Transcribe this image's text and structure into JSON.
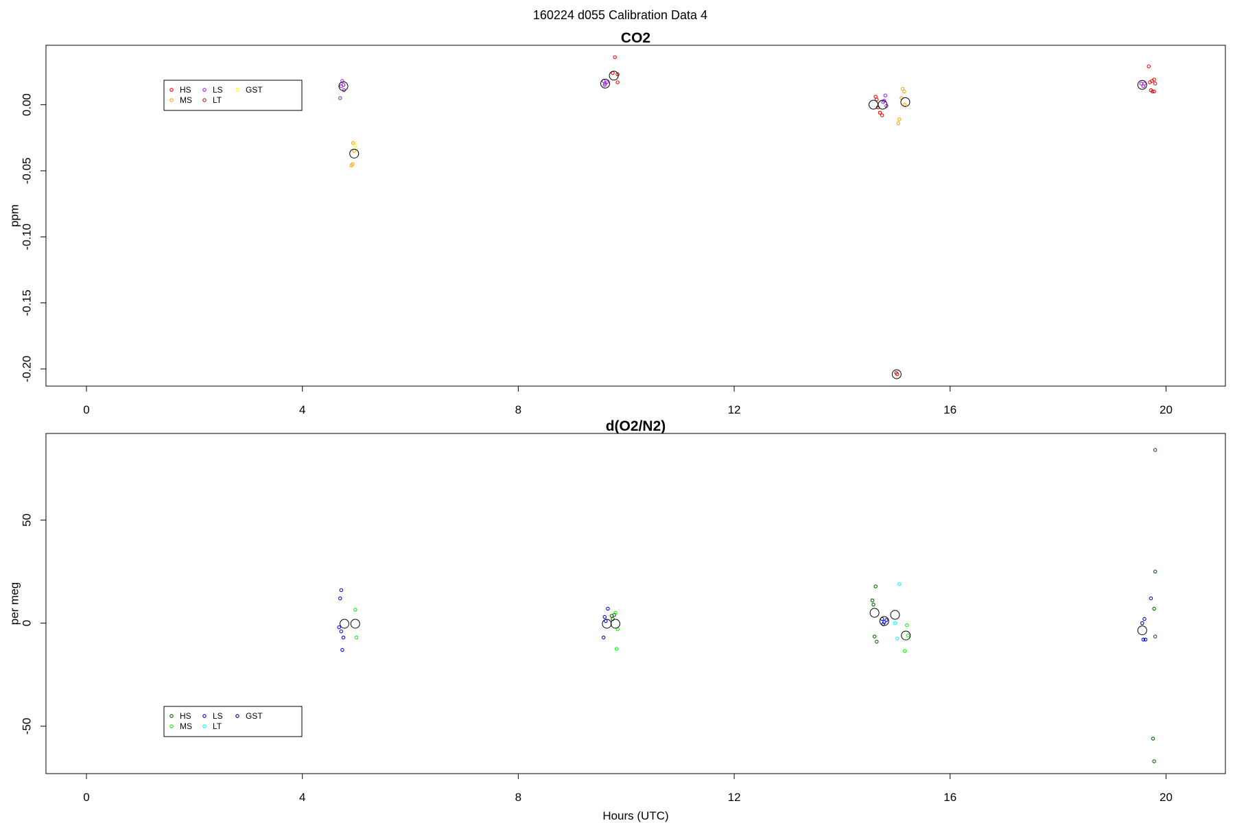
{
  "figure_title": "160224   d055   Calibration Data 4",
  "chart_data": [
    {
      "type": "scatter",
      "title": "CO2",
      "xlabel": "",
      "ylabel": "ppm",
      "xlim": [
        -0.75,
        21.1
      ],
      "ylim": [
        -0.213,
        0.045
      ],
      "x_ticks": [
        0,
        4,
        8,
        12,
        16,
        20
      ],
      "x_tick_labels": [
        "0",
        "4",
        "8",
        "12",
        "16",
        "20"
      ],
      "y_ticks": [
        0.0,
        -0.05,
        -0.1,
        -0.15,
        -0.2
      ],
      "y_tick_labels": [
        "0.00",
        "-0.05",
        "-0.10",
        "-0.15",
        "-0.20"
      ],
      "grid": false,
      "legend": {
        "position": "top-left",
        "entries": [
          {
            "label": "HS",
            "color": "#ff0000"
          },
          {
            "label": "MS",
            "color": "#ffa500"
          },
          {
            "label": "LS",
            "color": "#a020f0"
          },
          {
            "label": "LT",
            "color": "#b22222"
          },
          {
            "label": "GST",
            "color": "#ffff00"
          }
        ]
      },
      "series": [
        {
          "name": "HS",
          "color": "#ff0000",
          "marker": "small-circle",
          "points": [
            [
              9.79,
              0.036
            ],
            [
              9.75,
              0.024
            ],
            [
              9.84,
              0.017
            ],
            [
              9.84,
              0.023
            ],
            [
              14.62,
              0.006
            ],
            [
              14.64,
              0.004
            ],
            [
              14.66,
              -0.002
            ],
            [
              14.7,
              -0.006
            ],
            [
              14.74,
              -0.008
            ],
            [
              15.02,
              -0.204
            ],
            [
              19.68,
              0.029
            ],
            [
              19.7,
              0.017
            ],
            [
              19.74,
              0.018
            ],
            [
              19.78,
              0.019
            ],
            [
              19.72,
              0.011
            ],
            [
              19.75,
              0.01
            ]
          ]
        },
        {
          "name": "MS",
          "color": "#ffa500",
          "marker": "small-circle",
          "points": [
            [
              4.94,
              -0.029
            ],
            [
              4.93,
              -0.045
            ],
            [
              4.91,
              -0.046
            ],
            [
              4.96,
              -0.035
            ],
            [
              15.12,
              0.012
            ],
            [
              15.15,
              0.01
            ],
            [
              15.16,
              0.0
            ],
            [
              15.06,
              -0.011
            ],
            [
              15.04,
              -0.014
            ],
            [
              15.1,
              0.005
            ]
          ]
        },
        {
          "name": "LS",
          "color": "#a020f0",
          "marker": "small-circle",
          "points": [
            [
              4.7,
              0.005
            ],
            [
              4.74,
              0.018
            ],
            [
              4.76,
              0.015
            ],
            [
              4.72,
              0.014
            ],
            [
              4.77,
              0.011
            ],
            [
              9.58,
              0.018
            ],
            [
              9.6,
              0.015
            ],
            [
              9.64,
              0.017
            ],
            [
              9.61,
              0.016
            ],
            [
              14.8,
              0.007
            ],
            [
              14.78,
              0.003
            ],
            [
              14.82,
              -0.001
            ],
            [
              14.76,
              0.002
            ],
            [
              19.54,
              0.016
            ],
            [
              19.58,
              0.014
            ],
            [
              19.6,
              0.016
            ]
          ]
        },
        {
          "name": "LT",
          "color": "#b22222",
          "marker": "small-circle",
          "points": [
            [
              15.0,
              -0.203
            ],
            [
              19.8,
              0.016
            ],
            [
              19.78,
              0.01
            ]
          ]
        },
        {
          "name": "GST",
          "color": "#ffff00",
          "marker": "small-circle",
          "points": [
            [
              4.98,
              -0.031
            ]
          ]
        },
        {
          "name": "",
          "color": "#000000",
          "marker": "large-circle",
          "points": [
            [
              4.76,
              0.014
            ],
            [
              4.96,
              -0.037
            ],
            [
              9.61,
              0.016
            ],
            [
              9.77,
              0.022
            ],
            [
              14.58,
              0.0
            ],
            [
              14.75,
              0.0
            ],
            [
              15.01,
              -0.204
            ],
            [
              15.17,
              0.002
            ],
            [
              19.56,
              0.015
            ]
          ]
        }
      ]
    },
    {
      "type": "scatter",
      "title": "d(O2/N2)",
      "xlabel": "Hours (UTC)",
      "ylabel": "per meg",
      "xlim": [
        -0.75,
        21.1
      ],
      "ylim": [
        -73,
        92
      ],
      "x_ticks": [
        0,
        4,
        8,
        12,
        16,
        20
      ],
      "x_tick_labels": [
        "0",
        "4",
        "8",
        "12",
        "16",
        "20"
      ],
      "y_ticks": [
        50,
        0,
        -50
      ],
      "y_tick_labels": [
        "50",
        "0",
        "-50"
      ],
      "grid": false,
      "legend": {
        "position": "bottom-left",
        "entries": [
          {
            "label": "HS",
            "color": "#006400"
          },
          {
            "label": "MS",
            "color": "#00ff00"
          },
          {
            "label": "LS",
            "color": "#0000ff"
          },
          {
            "label": "LT",
            "color": "#00ffff"
          },
          {
            "label": "GST",
            "color": "#000080"
          }
        ]
      },
      "series": [
        {
          "name": "HS",
          "color": "#006400",
          "marker": "small-circle",
          "points": [
            [
              9.73,
              3.5
            ],
            [
              9.75,
              2.0
            ],
            [
              9.78,
              4.0
            ],
            [
              14.62,
              17.8
            ],
            [
              14.56,
              11.0
            ],
            [
              14.58,
              9.0
            ],
            [
              14.6,
              -6.5
            ],
            [
              14.64,
              -9.0
            ],
            [
              19.8,
              84.0
            ],
            [
              19.8,
              25.0
            ],
            [
              19.78,
              7.0
            ],
            [
              19.8,
              -6.5
            ],
            [
              19.76,
              -56.0
            ],
            [
              19.78,
              -67.0
            ]
          ]
        },
        {
          "name": "MS",
          "color": "#00ff00",
          "marker": "small-circle",
          "points": [
            [
              4.98,
              6.5
            ],
            [
              5.0,
              -7.0
            ],
            [
              9.8,
              5.0
            ],
            [
              9.84,
              -3.0
            ],
            [
              9.82,
              -12.5
            ],
            [
              15.2,
              -1.0
            ],
            [
              15.22,
              -6.0
            ],
            [
              15.16,
              -13.5
            ]
          ]
        },
        {
          "name": "LS",
          "color": "#0000ff",
          "marker": "small-circle",
          "points": [
            [
              4.72,
              16.0
            ],
            [
              4.7,
              12.0
            ],
            [
              4.68,
              -2.0
            ],
            [
              4.72,
              -4.0
            ],
            [
              4.76,
              -7.0
            ],
            [
              4.74,
              -13.0
            ],
            [
              9.66,
              7.0
            ],
            [
              9.6,
              3.0
            ],
            [
              9.62,
              1.0
            ],
            [
              9.58,
              -7.0
            ],
            [
              14.74,
              2.0
            ],
            [
              14.78,
              0.5
            ],
            [
              14.76,
              -0.5
            ],
            [
              14.82,
              1.5
            ],
            [
              19.6,
              2.0
            ],
            [
              19.58,
              -8.0
            ],
            [
              19.62,
              -8.0
            ],
            [
              19.72,
              12.0
            ]
          ]
        },
        {
          "name": "LT",
          "color": "#00ffff",
          "marker": "small-circle",
          "points": [
            [
              15.06,
              19.0
            ],
            [
              14.98,
              0.0
            ],
            [
              15.02,
              -7.5
            ]
          ]
        },
        {
          "name": "GST",
          "color": "#000080",
          "marker": "small-circle",
          "points": [
            [
              19.56,
              0.0
            ]
          ]
        },
        {
          "name": "",
          "color": "#000000",
          "marker": "large-circle",
          "points": [
            [
              4.78,
              -0.3
            ],
            [
              4.98,
              -0.3
            ],
            [
              9.64,
              -0.3
            ],
            [
              9.8,
              -0.3
            ],
            [
              14.6,
              5.0
            ],
            [
              14.78,
              1.0
            ],
            [
              14.98,
              4.0
            ],
            [
              15.18,
              -6.0
            ],
            [
              19.56,
              -3.5
            ]
          ]
        }
      ]
    }
  ]
}
